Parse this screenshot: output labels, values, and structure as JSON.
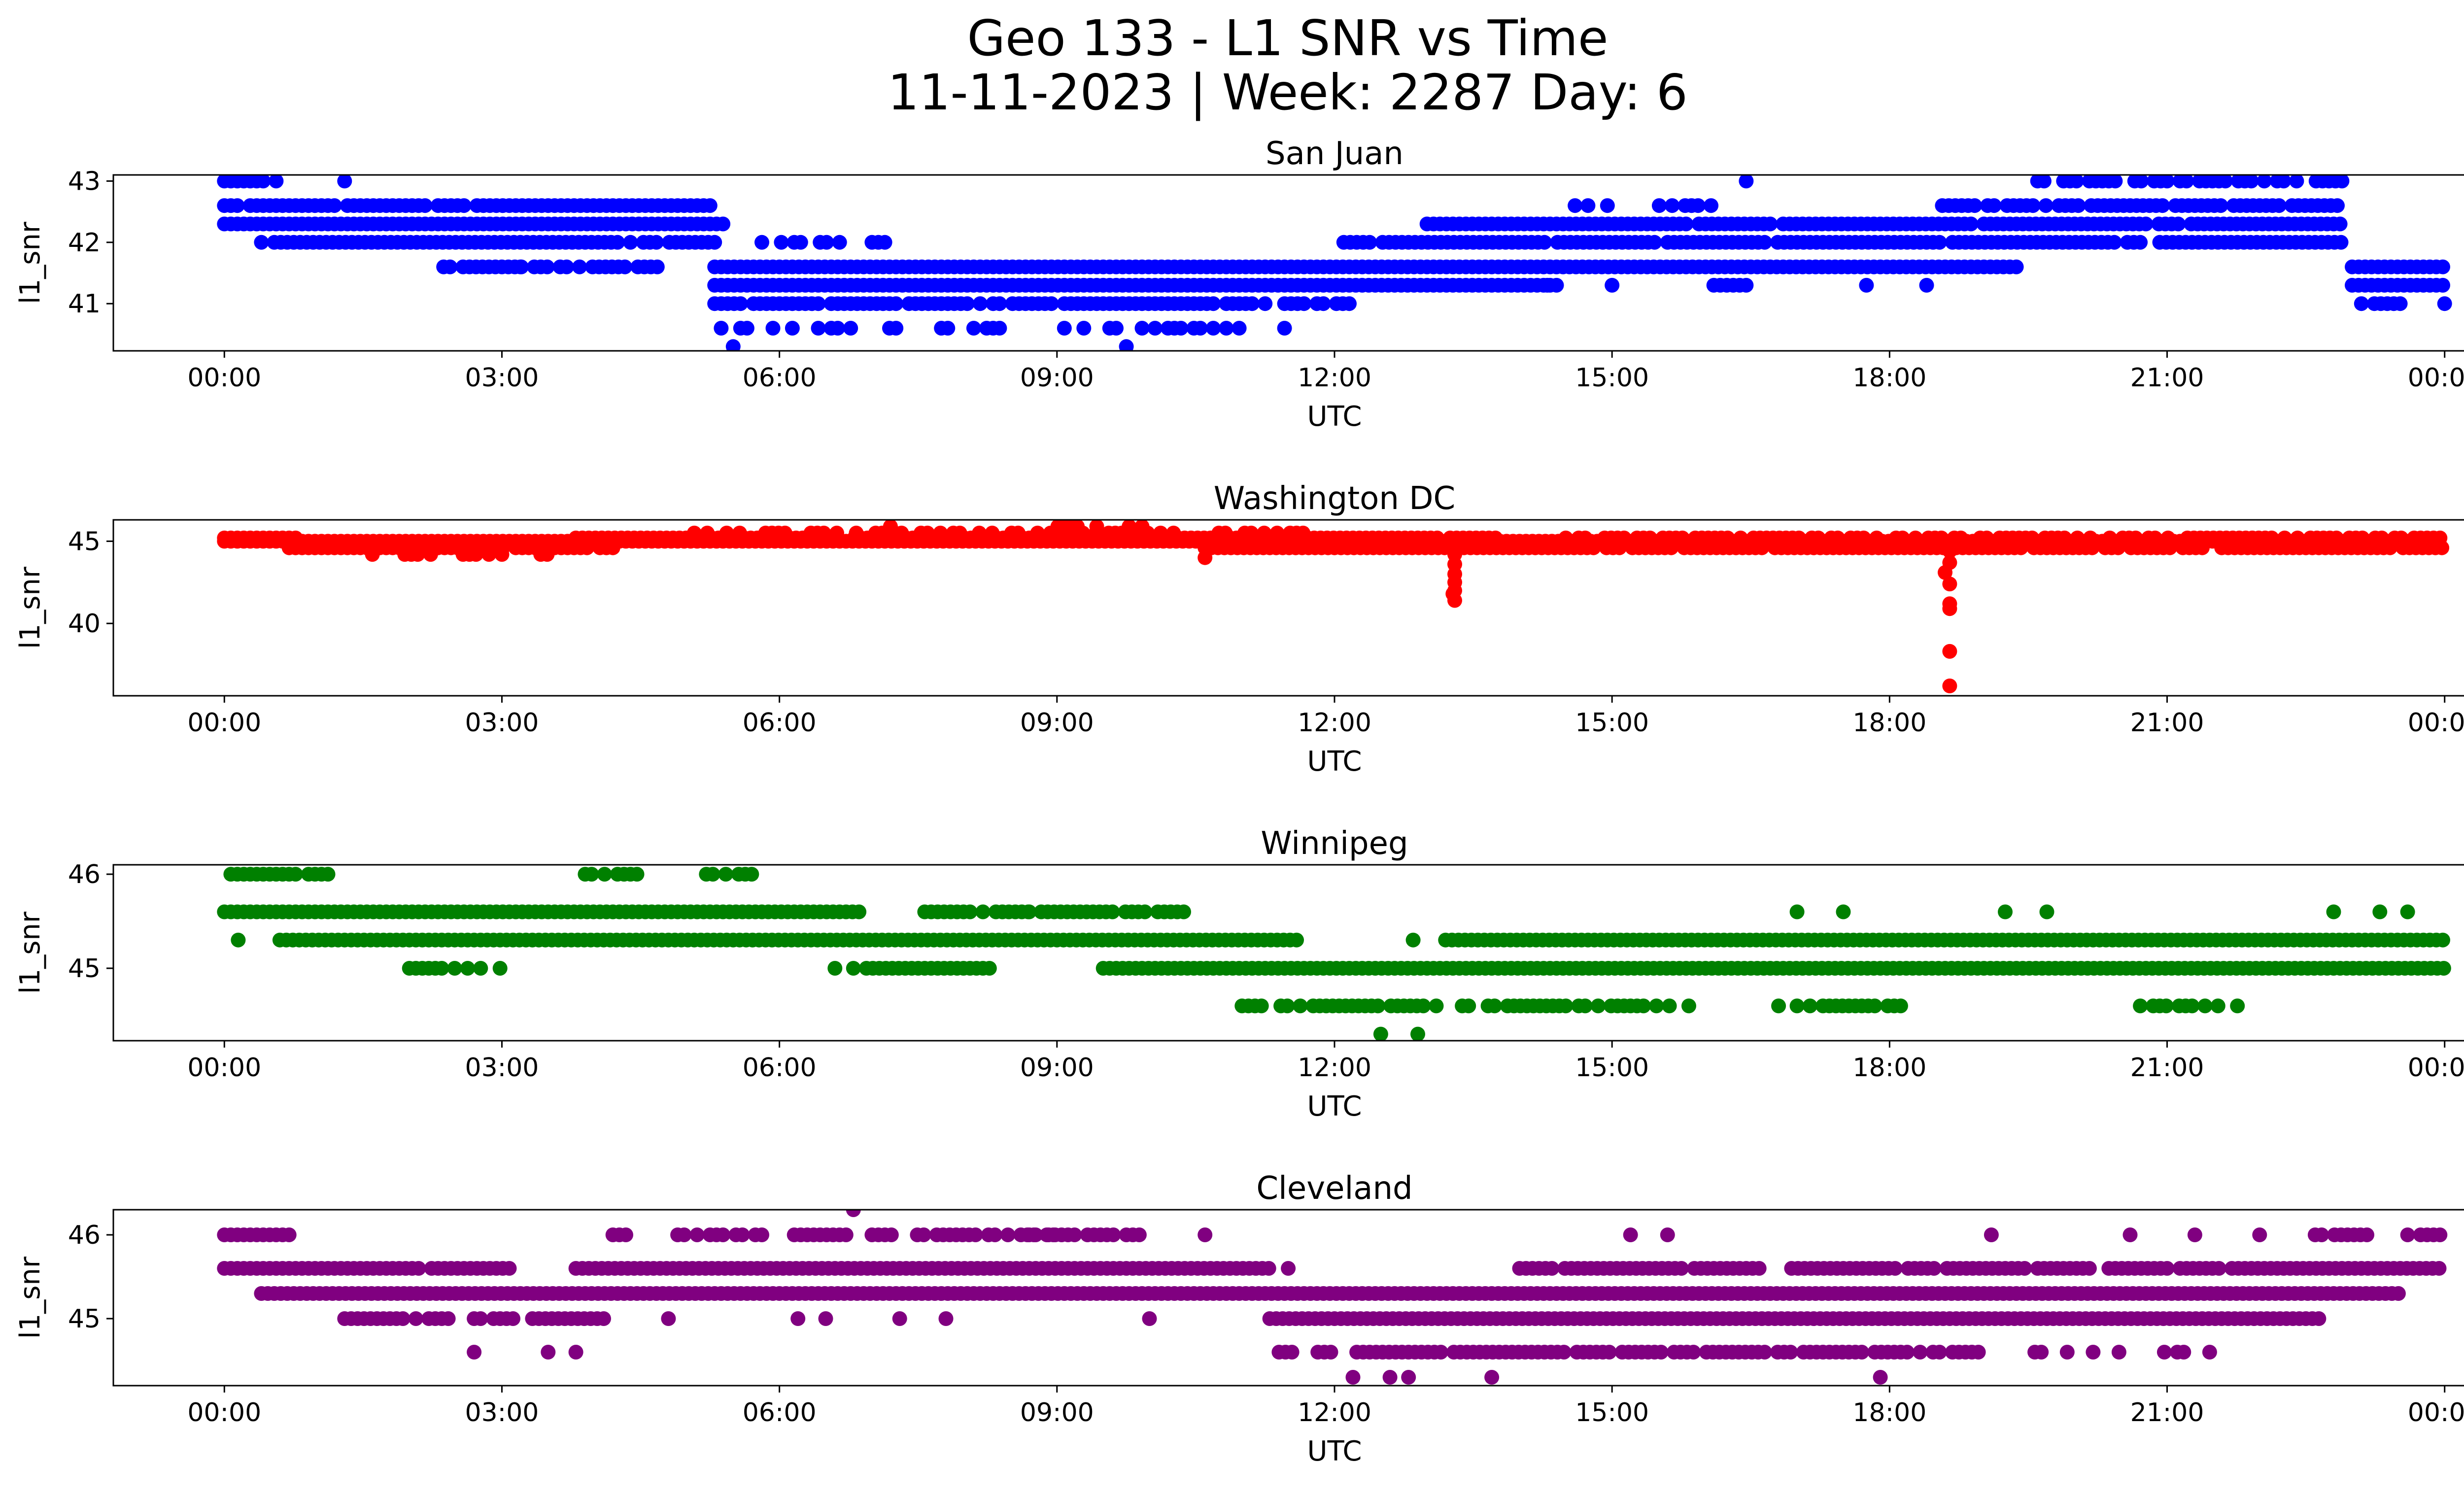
{
  "chart_data": {
    "type": "scatter",
    "title": "Geo 133 - L1 SNR vs Time",
    "subtitle": "11-11-2023 | Week: 2287 Day: 6",
    "x_ticks": [
      "00:00",
      "03:00",
      "06:00",
      "09:00",
      "12:00",
      "15:00",
      "18:00",
      "21:00",
      "00:00"
    ],
    "x_range_hours": [
      -1.2,
      25.2
    ],
    "panels": [
      {
        "title": "San Juan",
        "color": "#0000ff",
        "xlabel": "UTC",
        "ylabel": "l1_snr",
        "ylim": [
          40.23,
          43.1
        ],
        "yticks": [
          41,
          42,
          43
        ],
        "levels": [
          43.0,
          42.6,
          42.3,
          42.0,
          41.6,
          41.3,
          41.0,
          40.6,
          40.3
        ],
        "bands": [
          {
            "y": 43.0,
            "start": 0.0,
            "end": 0.6,
            "density": 0.7
          },
          {
            "y": 43.0,
            "start": 19.6,
            "end": 22.9,
            "density": 0.6
          },
          {
            "y": 42.6,
            "start": 0.0,
            "end": 5.3,
            "density": 0.95
          },
          {
            "y": 42.6,
            "start": 14.6,
            "end": 16.4,
            "density": 0.3
          },
          {
            "y": 42.6,
            "start": 18.5,
            "end": 22.9,
            "density": 0.9
          },
          {
            "y": 42.3,
            "start": 0.0,
            "end": 5.4,
            "density": 1.0
          },
          {
            "y": 42.3,
            "start": 13.0,
            "end": 22.9,
            "density": 0.95
          },
          {
            "y": 42.0,
            "start": 0.4,
            "end": 5.3,
            "density": 0.9
          },
          {
            "y": 42.0,
            "start": 5.6,
            "end": 7.3,
            "density": 0.3
          },
          {
            "y": 42.0,
            "start": 12.1,
            "end": 22.9,
            "density": 0.95
          },
          {
            "y": 41.6,
            "start": 2.3,
            "end": 4.8,
            "density": 0.7
          },
          {
            "y": 41.6,
            "start": 5.3,
            "end": 19.4,
            "density": 1.0
          },
          {
            "y": 41.6,
            "start": 23.0,
            "end": 24.0,
            "density": 1.0
          },
          {
            "y": 41.3,
            "start": 5.3,
            "end": 14.4,
            "density": 1.0
          },
          {
            "y": 41.3,
            "start": 16.1,
            "end": 16.5,
            "density": 0.8
          },
          {
            "y": 41.3,
            "start": 17.4,
            "end": 17.8,
            "density": 0.5
          },
          {
            "y": 41.3,
            "start": 23.0,
            "end": 24.0,
            "density": 1.0
          },
          {
            "y": 41.0,
            "start": 5.3,
            "end": 12.2,
            "density": 0.85
          },
          {
            "y": 41.0,
            "start": 23.1,
            "end": 23.6,
            "density": 0.6
          },
          {
            "y": 40.6,
            "start": 5.3,
            "end": 11.8,
            "density": 0.35
          }
        ],
        "points": [
          [
            1.3,
            43.0
          ],
          [
            9.75,
            40.3
          ],
          [
            5.5,
            40.3
          ],
          [
            16.45,
            43.0
          ],
          [
            14.3,
            41.3
          ],
          [
            15.0,
            41.3
          ],
          [
            18.4,
            41.3
          ],
          [
            24.0,
            41.0
          ],
          [
            3.2,
            41.6
          ]
        ]
      },
      {
        "title": "Washington DC",
        "color": "#ff0000",
        "xlabel": "UTC",
        "ylabel": "l1_snr",
        "ylim": [
          35.6,
          46.3
        ],
        "yticks": [
          40,
          45
        ],
        "levels": [
          45.2,
          45.0,
          44.6,
          45.5,
          45.9,
          44.2
        ],
        "bands": [
          {
            "y": 45.2,
            "start": 0.0,
            "end": 0.8,
            "density": 1.0
          },
          {
            "y": 45.0,
            "start": 0.0,
            "end": 24.0,
            "density": 1.0
          },
          {
            "y": 44.6,
            "start": 0.7,
            "end": 4.2,
            "density": 0.95
          },
          {
            "y": 44.6,
            "start": 10.6,
            "end": 24.0,
            "density": 0.95
          },
          {
            "y": 45.2,
            "start": 3.8,
            "end": 13.8,
            "density": 0.95
          },
          {
            "y": 45.2,
            "start": 14.5,
            "end": 24.0,
            "density": 0.7
          },
          {
            "y": 45.5,
            "start": 4.8,
            "end": 11.7,
            "density": 0.6
          },
          {
            "y": 45.9,
            "start": 8.8,
            "end": 10.4,
            "density": 0.4
          },
          {
            "y": 44.2,
            "start": 1.6,
            "end": 3.9,
            "density": 0.3
          }
        ],
        "points": [
          [
            13.3,
            44.2
          ],
          [
            13.3,
            43.6
          ],
          [
            13.3,
            43.0
          ],
          [
            13.3,
            42.5
          ],
          [
            13.3,
            42.0
          ],
          [
            13.3,
            41.4
          ],
          [
            13.28,
            41.8
          ],
          [
            18.65,
            44.4
          ],
          [
            18.65,
            43.7
          ],
          [
            18.65,
            42.4
          ],
          [
            18.65,
            41.2
          ],
          [
            18.65,
            40.9
          ],
          [
            18.65,
            38.3
          ],
          [
            18.65,
            36.2
          ],
          [
            18.6,
            43.1
          ],
          [
            10.6,
            44.0
          ],
          [
            7.2,
            45.9
          ]
        ]
      },
      {
        "title": "Winnipeg",
        "color": "#008000",
        "xlabel": "UTC",
        "ylabel": "l1_snr",
        "ylim": [
          44.23,
          46.1
        ],
        "yticks": [
          45,
          46
        ],
        "levels": [
          46.0,
          45.6,
          45.3,
          45.0,
          44.6,
          44.3
        ],
        "bands": [
          {
            "y": 46.0,
            "start": 0.0,
            "end": 1.15,
            "density": 0.9
          },
          {
            "y": 46.0,
            "start": 3.9,
            "end": 4.5,
            "density": 0.7
          },
          {
            "y": 46.0,
            "start": 5.0,
            "end": 5.7,
            "density": 0.6
          },
          {
            "y": 45.6,
            "start": 0.0,
            "end": 6.9,
            "density": 1.0
          },
          {
            "y": 45.6,
            "start": 7.5,
            "end": 10.4,
            "density": 0.8
          },
          {
            "y": 45.3,
            "start": 0.6,
            "end": 11.6,
            "density": 1.0
          },
          {
            "y": 45.3,
            "start": 13.2,
            "end": 24.0,
            "density": 1.0
          },
          {
            "y": 45.0,
            "start": 2.0,
            "end": 3.0,
            "density": 0.6
          },
          {
            "y": 45.0,
            "start": 6.8,
            "end": 8.3,
            "density": 0.85
          },
          {
            "y": 45.0,
            "start": 9.5,
            "end": 24.0,
            "density": 1.0
          },
          {
            "y": 44.6,
            "start": 11.0,
            "end": 15.9,
            "density": 0.75
          },
          {
            "y": 44.6,
            "start": 17.0,
            "end": 18.2,
            "density": 0.6
          },
          {
            "y": 44.6,
            "start": 20.5,
            "end": 21.8,
            "density": 0.6
          }
        ],
        "points": [
          [
            0.15,
            45.3
          ],
          [
            6.6,
            45.0
          ],
          [
            12.85,
            45.3
          ],
          [
            12.5,
            44.3
          ],
          [
            12.9,
            44.3
          ],
          [
            17.0,
            45.6
          ],
          [
            17.5,
            45.6
          ],
          [
            19.25,
            45.6
          ],
          [
            19.7,
            45.6
          ],
          [
            22.8,
            45.6
          ],
          [
            23.3,
            45.6
          ],
          [
            23.6,
            45.6
          ],
          [
            8.7,
            45.6
          ],
          [
            16.8,
            44.6
          ]
        ]
      },
      {
        "title": "Cleveland",
        "color": "#800080",
        "xlabel": "UTC",
        "ylabel": "l1_snr",
        "ylim": [
          44.2,
          46.3
        ],
        "yticks": [
          45,
          46
        ],
        "levels": [
          46.3,
          46.0,
          45.6,
          45.3,
          45.0,
          44.6,
          44.3
        ],
        "bands": [
          {
            "y": 46.0,
            "start": 0.0,
            "end": 0.8,
            "density": 0.8
          },
          {
            "y": 46.0,
            "start": 4.2,
            "end": 9.0,
            "density": 0.7
          },
          {
            "y": 46.0,
            "start": 8.7,
            "end": 9.9,
            "density": 0.8
          },
          {
            "y": 46.0,
            "start": 22.6,
            "end": 23.3,
            "density": 0.8
          },
          {
            "y": 46.0,
            "start": 23.6,
            "end": 24.0,
            "density": 0.9
          },
          {
            "y": 45.6,
            "start": 0.0,
            "end": 3.1,
            "density": 0.95
          },
          {
            "y": 45.6,
            "start": 3.8,
            "end": 11.3,
            "density": 1.0
          },
          {
            "y": 45.6,
            "start": 14.0,
            "end": 24.0,
            "density": 0.9
          },
          {
            "y": 45.3,
            "start": 0.4,
            "end": 23.5,
            "density": 1.0
          },
          {
            "y": 45.0,
            "start": 1.3,
            "end": 4.2,
            "density": 0.8
          },
          {
            "y": 45.0,
            "start": 11.3,
            "end": 22.7,
            "density": 1.0
          },
          {
            "y": 44.6,
            "start": 11.4,
            "end": 19.0,
            "density": 0.8
          },
          {
            "y": 44.6,
            "start": 19.5,
            "end": 21.5,
            "density": 0.3
          }
        ],
        "points": [
          [
            6.8,
            46.3
          ],
          [
            2.7,
            44.6
          ],
          [
            3.5,
            44.6
          ],
          [
            3.8,
            44.6
          ],
          [
            4.8,
            45.0
          ],
          [
            6.2,
            45.0
          ],
          [
            6.5,
            45.0
          ],
          [
            7.3,
            45.0
          ],
          [
            7.8,
            45.0
          ],
          [
            10.0,
            45.0
          ],
          [
            10.6,
            46.0
          ],
          [
            11.5,
            45.6
          ],
          [
            15.2,
            46.0
          ],
          [
            15.6,
            46.0
          ],
          [
            19.1,
            46.0
          ],
          [
            20.6,
            46.0
          ],
          [
            21.3,
            46.0
          ],
          [
            22.0,
            46.0
          ],
          [
            12.2,
            44.3
          ],
          [
            12.6,
            44.3
          ],
          [
            12.8,
            44.3
          ],
          [
            13.7,
            44.3
          ],
          [
            17.9,
            44.3
          ]
        ]
      }
    ]
  }
}
